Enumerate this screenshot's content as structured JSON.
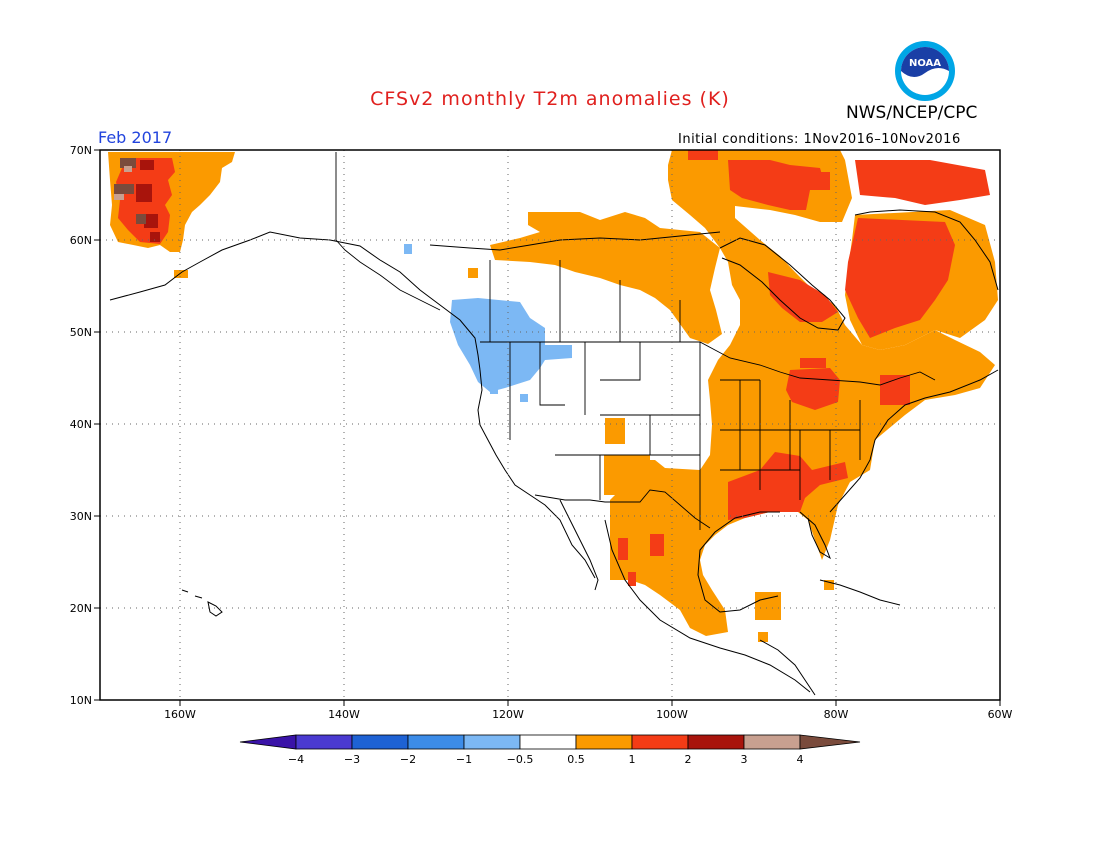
{
  "title": "CFSv2 monthly T2m anomalies (K)",
  "agency": "NWS/NCEP/CPC",
  "logo_text": "NOAA",
  "valid_month": "Feb 2017",
  "initial_conditions": "Initial conditions: 1Nov2016–10Nov2016",
  "axes": {
    "lat_labels": [
      "70N",
      "60N",
      "50N",
      "40N",
      "30N",
      "20N",
      "10N"
    ],
    "lon_labels": [
      "160W",
      "140W",
      "120W",
      "100W",
      "80W",
      "60W"
    ]
  },
  "colorbar": {
    "labels": [
      "−4",
      "−3",
      "−2",
      "−1",
      "−0.5",
      "0.5",
      "1",
      "2",
      "3",
      "4"
    ],
    "colors": [
      "#3a13a8",
      "#4a3ad0",
      "#1e62d4",
      "#3c8ce8",
      "#7cb8f4",
      "#ffffff",
      "#fb9a00",
      "#f43c16",
      "#a8140c",
      "#c8a090",
      "#7a4b3c"
    ]
  },
  "colors": {
    "warm_0_5_1": "#fb9a00",
    "warm_1_2": "#f43c16",
    "warm_2_3": "#a8140c",
    "warm_3_4": "#c8a090",
    "warm_4_plus": "#7a4b3c",
    "cool_neg0_5_neg1": "#7cb8f4"
  }
}
